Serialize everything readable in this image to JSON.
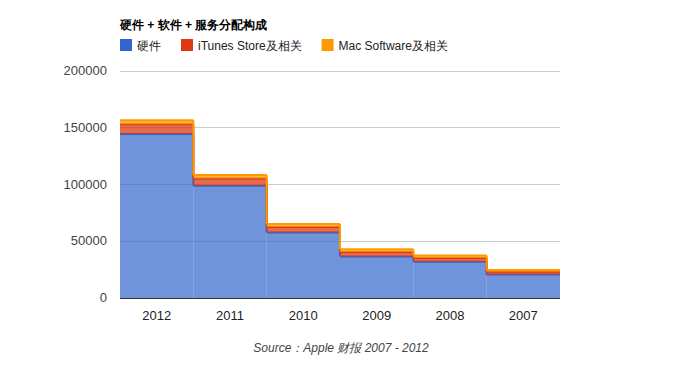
{
  "chart_data": {
    "type": "area",
    "title": "硬件 + 软件 + 服务分配构成",
    "source": "Source：Apple 财报 2007 - 2012",
    "categories": [
      "2012",
      "2011",
      "2010",
      "2009",
      "2008",
      "2007"
    ],
    "series": [
      {
        "name": "硬件",
        "color": "#3366cc",
        "values": [
          144500,
          99000,
          57700,
          36500,
          31900,
          20600
        ]
      },
      {
        "name": "iTunes Store及相关",
        "color": "#dc3912",
        "values": [
          8500,
          6300,
          4900,
          4000,
          3300,
          2500
        ]
      },
      {
        "name": "Mac Software及相关",
        "color": "#ff9900",
        "values": [
          3500,
          3000,
          2600,
          2400,
          2200,
          1500
        ]
      }
    ],
    "stacked": true,
    "line_style": "step",
    "ylim": [
      0,
      200000
    ],
    "yticks": [
      0,
      50000,
      100000,
      150000,
      200000
    ],
    "grid": true,
    "legend": "top"
  }
}
